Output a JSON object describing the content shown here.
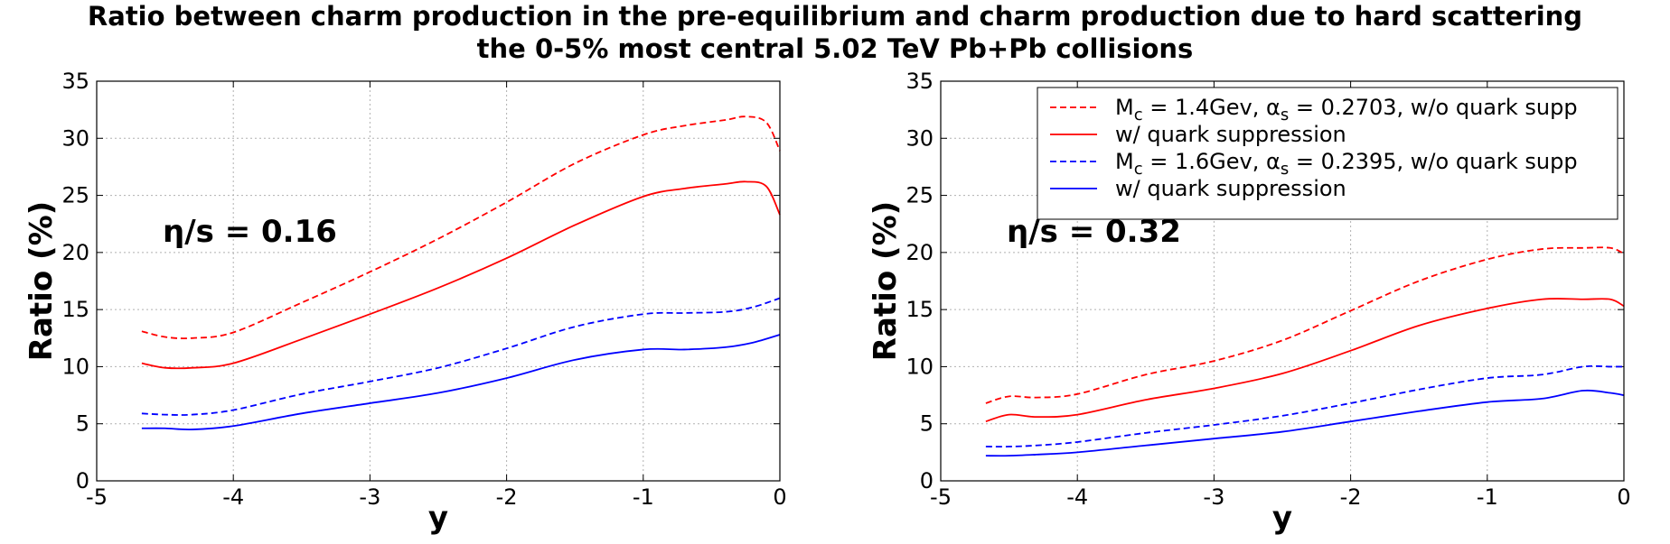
{
  "figure": {
    "title_line1": "Ratio between charm production in the pre-equilibrium and charm production due to hard scattering",
    "title_line2": "the 0-5% most central 5.02 TeV Pb+Pb collisions"
  },
  "chart_data": [
    {
      "type": "line",
      "xlabel": "y",
      "ylabel": "Ratio (%)",
      "xlim": [
        -5,
        0
      ],
      "ylim": [
        0,
        35
      ],
      "xticks": [
        -5,
        -4,
        -3,
        -2,
        -1,
        0
      ],
      "yticks": [
        0,
        5,
        10,
        15,
        20,
        25,
        30,
        35
      ],
      "grid": true,
      "annotation": "η/s = 0.16",
      "series": [
        {
          "name": "Mc = 1.4Gev, αs = 0.2703, w/o quark supp",
          "color": "#ff0000",
          "dash": true,
          "x": [
            -4.67,
            -4.5,
            -4.3,
            -4.0,
            -3.5,
            -3.0,
            -2.5,
            -2.0,
            -1.5,
            -1.0,
            -0.7,
            -0.4,
            -0.25,
            -0.1,
            0.0
          ],
          "y": [
            13.1,
            12.6,
            12.5,
            13.0,
            15.6,
            18.3,
            21.2,
            24.4,
            27.8,
            30.3,
            31.1,
            31.6,
            31.9,
            31.4,
            28.9
          ]
        },
        {
          "name": "w/ quark suppression",
          "color": "#ff0000",
          "dash": false,
          "x": [
            -4.67,
            -4.5,
            -4.3,
            -4.0,
            -3.5,
            -3.0,
            -2.5,
            -2.0,
            -1.5,
            -1.0,
            -0.7,
            -0.4,
            -0.25,
            -0.1,
            0.0
          ],
          "y": [
            10.3,
            9.9,
            9.9,
            10.3,
            12.4,
            14.6,
            16.9,
            19.5,
            22.4,
            24.9,
            25.6,
            26.0,
            26.2,
            25.8,
            23.3
          ]
        },
        {
          "name": "Mc = 1.6Gev, αs = 0.2395, w/o quark supp",
          "color": "#0000ff",
          "dash": true,
          "x": [
            -4.67,
            -4.5,
            -4.3,
            -4.0,
            -3.5,
            -3.0,
            -2.5,
            -2.0,
            -1.5,
            -1.0,
            -0.7,
            -0.4,
            -0.2,
            0.0
          ],
          "y": [
            5.9,
            5.8,
            5.8,
            6.2,
            7.6,
            8.7,
            9.9,
            11.6,
            13.5,
            14.6,
            14.7,
            14.8,
            15.2,
            16.0
          ]
        },
        {
          "name": "w/ quark suppression",
          "color": "#0000ff",
          "dash": false,
          "x": [
            -4.67,
            -4.5,
            -4.3,
            -4.0,
            -3.5,
            -3.0,
            -2.5,
            -2.0,
            -1.5,
            -1.0,
            -0.7,
            -0.4,
            -0.2,
            0.0
          ],
          "y": [
            4.6,
            4.6,
            4.5,
            4.8,
            5.9,
            6.8,
            7.7,
            9.0,
            10.6,
            11.5,
            11.5,
            11.7,
            12.1,
            12.8
          ]
        }
      ]
    },
    {
      "type": "line",
      "xlabel": "y",
      "ylabel": "Ratio (%)",
      "xlim": [
        -5,
        0
      ],
      "ylim": [
        0,
        35
      ],
      "xticks": [
        -5,
        -4,
        -3,
        -2,
        -1,
        0
      ],
      "yticks": [
        0,
        5,
        10,
        15,
        20,
        25,
        30,
        35
      ],
      "grid": true,
      "annotation": "η/s = 0.32",
      "legend_position": "top-right",
      "legend": [
        {
          "main": "M",
          "sub": "c",
          "mid": " = 1.4Gev, α",
          "sub2": "s",
          "rest": " = 0.2703, w/o quark supp"
        },
        {
          "main": "w/ quark suppression",
          "sub": "",
          "mid": "",
          "sub2": "",
          "rest": ""
        },
        {
          "main": "M",
          "sub": "c",
          "mid": " = 1.6Gev, α",
          "sub2": "s",
          "rest": " = 0.2395, w/o quark supp"
        },
        {
          "main": "w/ quark suppression",
          "sub": "",
          "mid": "",
          "sub2": "",
          "rest": ""
        }
      ],
      "series": [
        {
          "name": "Mc = 1.4Gev, αs = 0.2703, w/o quark supp",
          "color": "#ff0000",
          "dash": true,
          "x": [
            -4.67,
            -4.5,
            -4.3,
            -4.0,
            -3.5,
            -3.0,
            -2.5,
            -2.0,
            -1.5,
            -1.0,
            -0.6,
            -0.3,
            -0.1,
            0.0
          ],
          "y": [
            6.8,
            7.4,
            7.3,
            7.6,
            9.3,
            10.5,
            12.3,
            14.9,
            17.5,
            19.4,
            20.3,
            20.4,
            20.4,
            19.9
          ]
        },
        {
          "name": "w/ quark suppression",
          "color": "#ff0000",
          "dash": false,
          "x": [
            -4.67,
            -4.5,
            -4.3,
            -4.0,
            -3.5,
            -3.0,
            -2.5,
            -2.0,
            -1.5,
            -1.0,
            -0.6,
            -0.3,
            -0.1,
            0.0
          ],
          "y": [
            5.2,
            5.8,
            5.6,
            5.8,
            7.1,
            8.1,
            9.4,
            11.4,
            13.6,
            15.1,
            15.9,
            15.9,
            15.9,
            15.3
          ]
        },
        {
          "name": "Mc = 1.6Gev, αs = 0.2395, w/o quark supp",
          "color": "#0000ff",
          "dash": true,
          "x": [
            -4.67,
            -4.5,
            -4.3,
            -4.0,
            -3.5,
            -3.0,
            -2.5,
            -2.0,
            -1.5,
            -1.0,
            -0.6,
            -0.3,
            -0.1,
            0.0
          ],
          "y": [
            3.0,
            3.0,
            3.1,
            3.4,
            4.2,
            4.9,
            5.7,
            6.8,
            8.0,
            9.0,
            9.3,
            10.0,
            10.0,
            10.0
          ]
        },
        {
          "name": "w/ quark suppression",
          "color": "#0000ff",
          "dash": false,
          "x": [
            -4.67,
            -4.5,
            -4.3,
            -4.0,
            -3.5,
            -3.0,
            -2.5,
            -2.0,
            -1.5,
            -1.0,
            -0.6,
            -0.3,
            -0.1,
            0.0
          ],
          "y": [
            2.2,
            2.2,
            2.3,
            2.5,
            3.1,
            3.7,
            4.3,
            5.2,
            6.1,
            6.9,
            7.2,
            7.9,
            7.7,
            7.5
          ]
        }
      ]
    }
  ]
}
